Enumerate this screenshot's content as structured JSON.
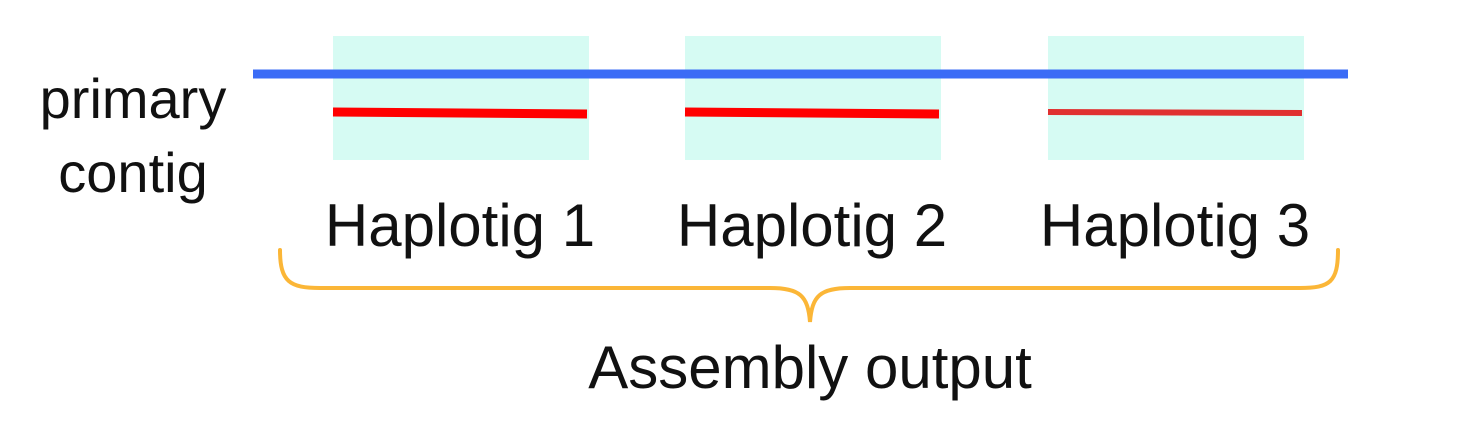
{
  "primary_contig": {
    "label_line1": "primary",
    "label_line2": "contig",
    "color": "#3b6cf6"
  },
  "haplotigs": [
    {
      "label": "Haplotig 1",
      "line_color": "#ff0000"
    },
    {
      "label": "Haplotig 2",
      "line_color": "#ff0000"
    },
    {
      "label": "Haplotig 3",
      "line_color": "#e03030"
    }
  ],
  "highlight_box_color": "#d6fbf3",
  "brace": {
    "color": "#fbb637",
    "label": "Assembly output"
  }
}
